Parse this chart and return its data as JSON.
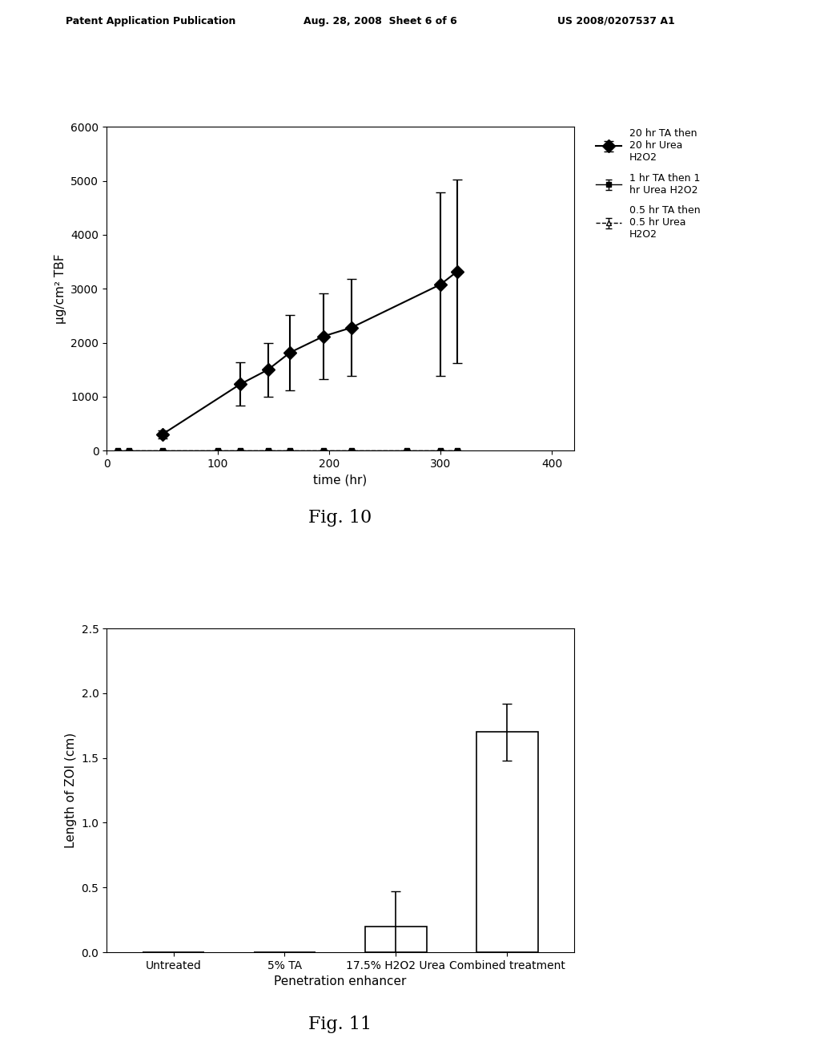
{
  "header_left": "Patent Application Publication",
  "header_center": "Aug. 28, 2008  Sheet 6 of 6",
  "header_right": "US 2008/0207537 A1",
  "fig10_title": "Fig. 10",
  "fig10_xlabel": "time (hr)",
  "fig10_ylabel": "μg/cm² TBF",
  "fig10_xlim": [
    0,
    420
  ],
  "fig10_ylim": [
    0,
    6000
  ],
  "fig10_xticks": [
    0,
    100,
    200,
    300,
    400
  ],
  "fig10_yticks": [
    0,
    1000,
    2000,
    3000,
    4000,
    5000,
    6000
  ],
  "series1_x": [
    50,
    120,
    145,
    165,
    195,
    220,
    300,
    315
  ],
  "series1_y": [
    300,
    1230,
    1500,
    1820,
    2120,
    2280,
    3080,
    3320
  ],
  "series1_yerr": [
    80,
    400,
    500,
    700,
    800,
    900,
    1700,
    1700
  ],
  "series1_label": "20 hr TA then\n20 hr Urea\nH2O2",
  "series1_marker": "D",
  "series1_color": "#000000",
  "series2_x": [
    10,
    20,
    50,
    100,
    120,
    145,
    165,
    195,
    220,
    270,
    300,
    315
  ],
  "series2_y": [
    0,
    0,
    0,
    0,
    0,
    0,
    0,
    0,
    0,
    0,
    0,
    0
  ],
  "series2_yerr_vals": [
    15,
    15,
    18,
    20,
    20,
    20,
    20,
    20,
    20,
    18,
    20,
    20
  ],
  "series2_label": "1 hr TA then 1\nhr Urea H2O2",
  "series2_marker": "s",
  "series2_color": "#000000",
  "series3_x": [
    10,
    20,
    50,
    100,
    120,
    145,
    165,
    195,
    220,
    270,
    300,
    315
  ],
  "series3_y": [
    0,
    0,
    0,
    0,
    0,
    0,
    0,
    0,
    0,
    0,
    0,
    0
  ],
  "series3_yerr_vals": [
    12,
    12,
    15,
    18,
    18,
    18,
    18,
    18,
    18,
    15,
    18,
    18
  ],
  "series3_label": "0.5 hr TA then\n0.5 hr Urea\nH2O2",
  "series3_marker": "^",
  "series3_color": "#000000",
  "fig11_title": "Fig. 11",
  "fig11_xlabel": "Penetration enhancer",
  "fig11_ylabel": "Length of ZOI (cm)",
  "fig11_categories": [
    "Untreated",
    "5% TA",
    "17.5% H2O2 Urea",
    "Combined treatment"
  ],
  "fig11_values": [
    0.0,
    0.0,
    0.2,
    1.7
  ],
  "fig11_errors": [
    0.0,
    0.0,
    0.27,
    0.22
  ],
  "fig11_ylim": [
    0,
    2.5
  ],
  "fig11_yticks": [
    0,
    0.5,
    1,
    1.5,
    2,
    2.5
  ],
  "fig11_bar_color": "#ffffff",
  "fig11_bar_edgecolor": "#000000"
}
